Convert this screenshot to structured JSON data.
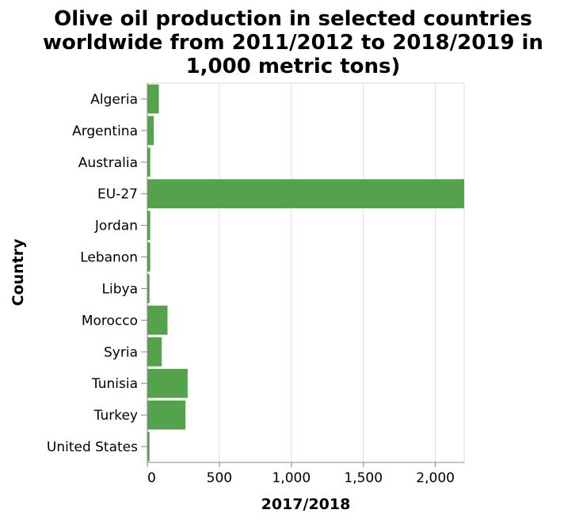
{
  "chart_data": {
    "type": "bar",
    "orientation": "horizontal",
    "title_lines": [
      "Olive oil production in selected countries",
      "worldwide from 2011/2012 to 2018/2019 in",
      "1,000 metric tons)"
    ],
    "xlabel": "2017/2018",
    "ylabel": "Country",
    "xlim": [
      0,
      2200
    ],
    "xticks": [
      0,
      500,
      1000,
      1500,
      2000
    ],
    "xtick_labels": [
      "0",
      "500",
      "1,000",
      "1,500",
      "2,000"
    ],
    "grid": true,
    "categories": [
      "Algeria",
      "Argentina",
      "Australia",
      "EU-27",
      "Jordan",
      "Lebanon",
      "Libya",
      "Morocco",
      "Syria",
      "Tunisia",
      "Turkey",
      "United States"
    ],
    "values": [
      80,
      45,
      20,
      2200,
      20,
      20,
      15,
      140,
      100,
      280,
      265,
      15
    ],
    "bar_color": "#54a24b"
  }
}
